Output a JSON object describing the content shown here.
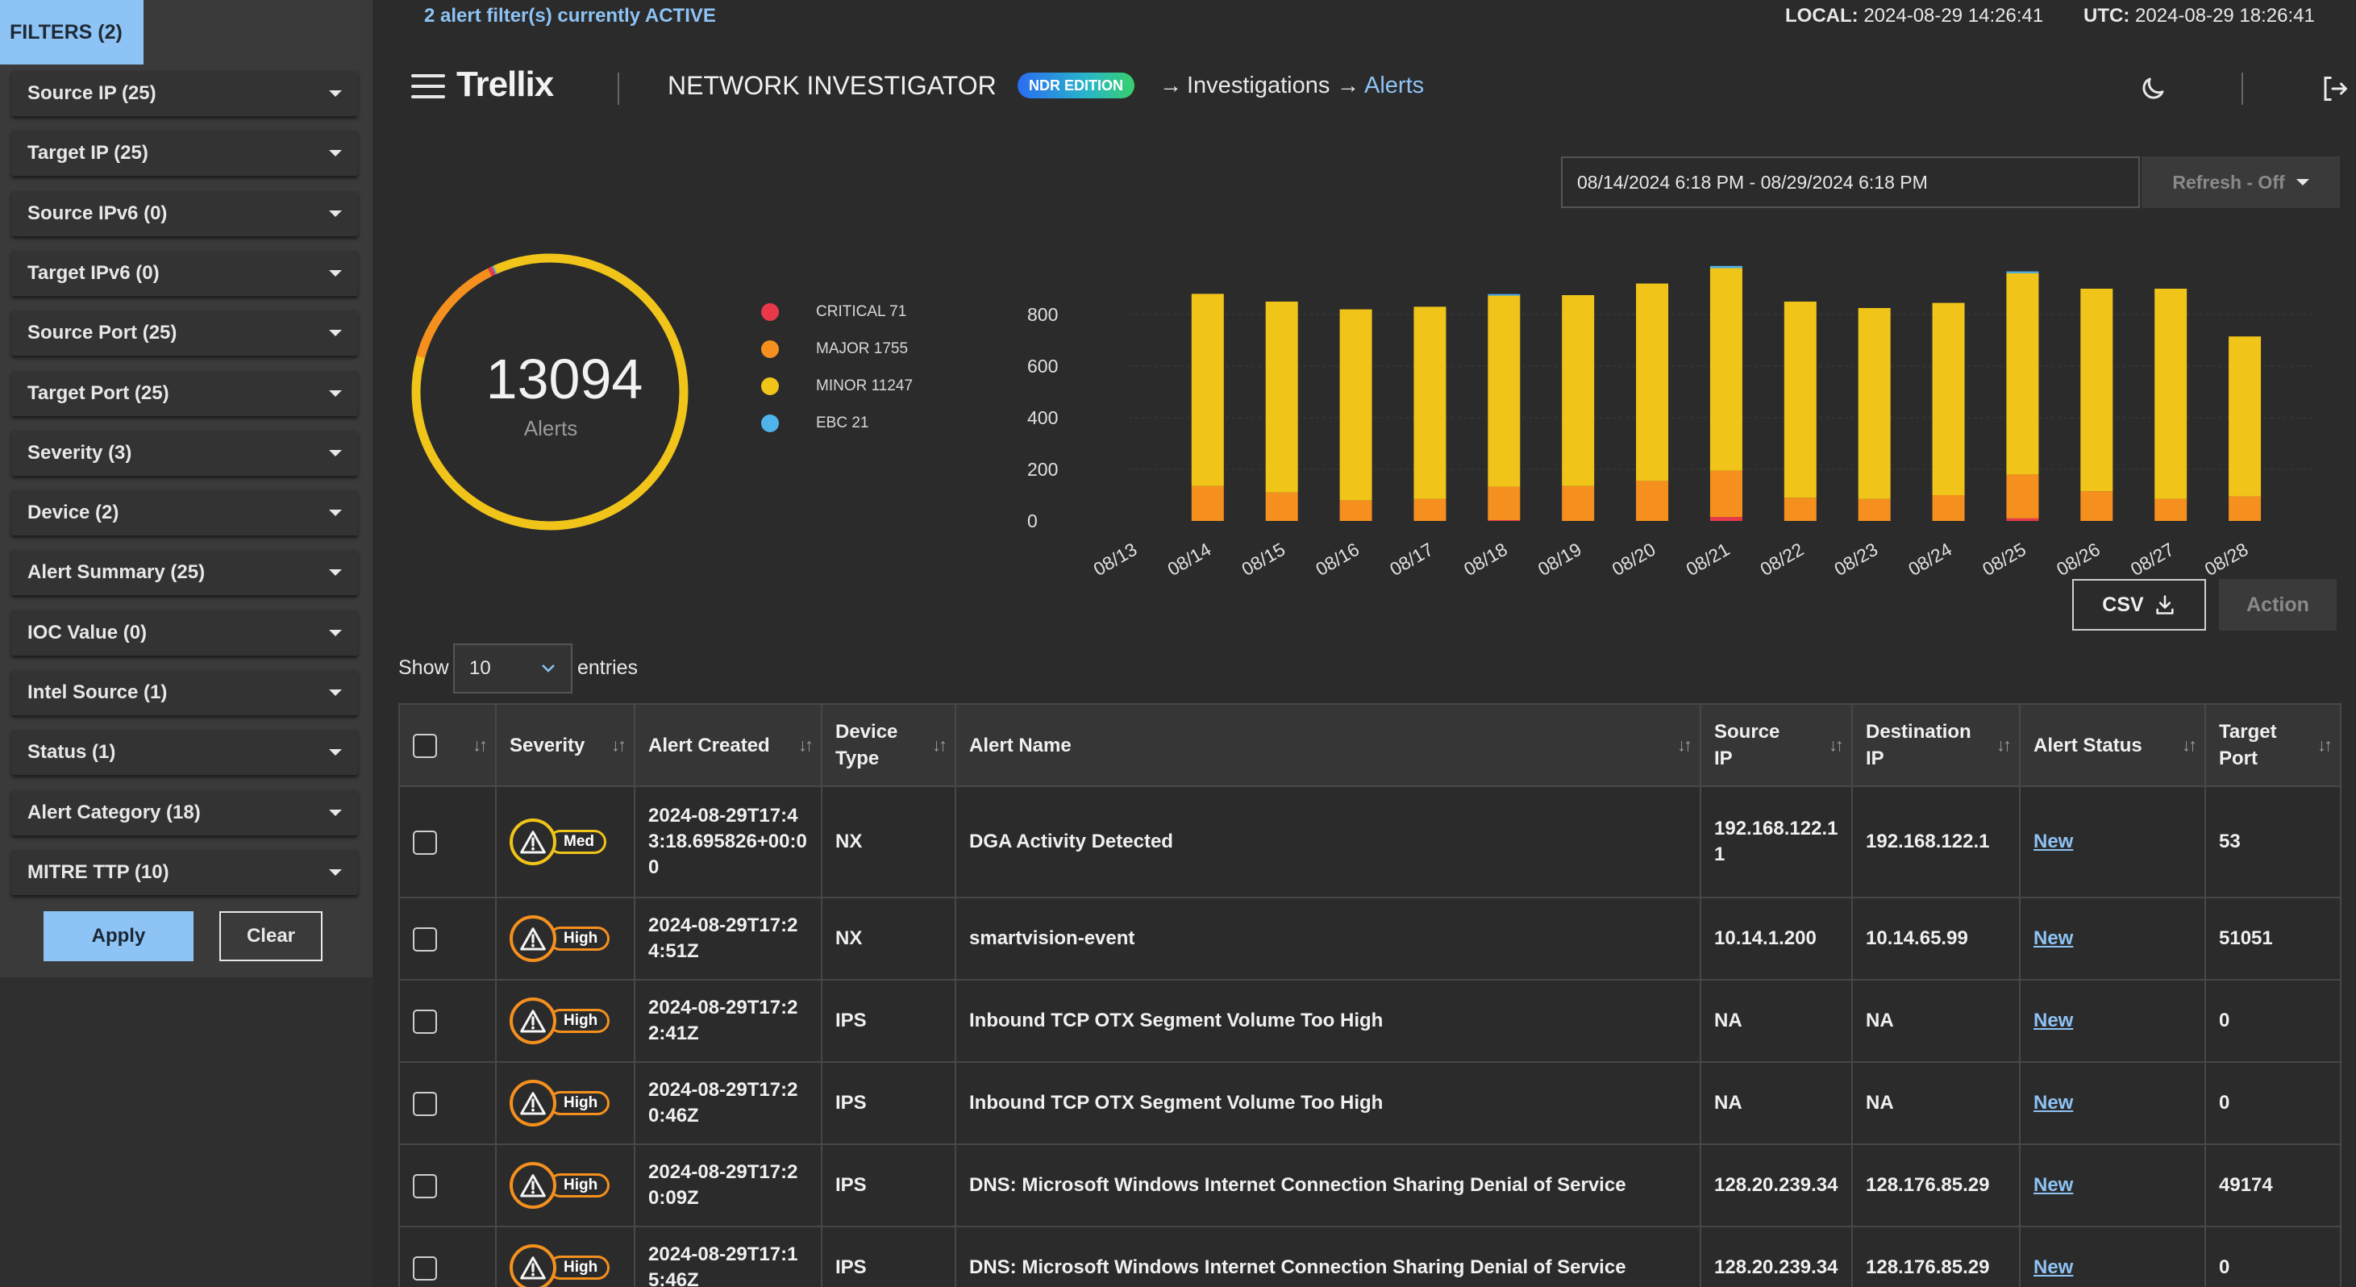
{
  "filters_panel": {
    "tab_label": "FILTERS (2)",
    "items": [
      {
        "label": "Source IP (25)"
      },
      {
        "label": "Target IP (25)"
      },
      {
        "label": "Source IPv6 (0)"
      },
      {
        "label": "Target IPv6 (0)"
      },
      {
        "label": "Source Port (25)"
      },
      {
        "label": "Target Port (25)"
      },
      {
        "label": "Severity (3)"
      },
      {
        "label": "Device (2)"
      },
      {
        "label": "Alert Summary (25)"
      },
      {
        "label": "IOC Value (0)"
      },
      {
        "label": "Intel Source (1)"
      },
      {
        "label": "Status (1)"
      },
      {
        "label": "Alert Category (18)"
      },
      {
        "label": "MITRE TTP (10)"
      }
    ],
    "apply_label": "Apply",
    "clear_label": "Clear"
  },
  "topbar": {
    "active_filters": "2 alert filter(s) currently ACTIVE",
    "local_key": "LOCAL:",
    "local_value": "2024-08-29 14:26:41",
    "utc_key": "UTC:",
    "utc_value": "2024-08-29 18:26:41"
  },
  "header": {
    "logo": "Trellix",
    "product": "NETWORK INVESTIGATOR",
    "badge": "NDR EDITION",
    "breadcrumb": [
      "Investigations",
      "Alerts"
    ],
    "arrow": "→"
  },
  "controls": {
    "date_range": "08/14/2024 6:18 PM - 08/29/2024 6:18 PM",
    "refresh_label": "Refresh - Off",
    "csv_label": "CSV",
    "action_label": "Action",
    "show_label": "Show",
    "entries_value": "10",
    "entries_label": "entries"
  },
  "summary": {
    "total": "13094",
    "total_label": "Alerts",
    "legend": [
      {
        "label": "CRITICAL 71",
        "color": "#e8394a",
        "count": 71
      },
      {
        "label": "MAJOR 1755",
        "color": "#f5901e",
        "count": 1755
      },
      {
        "label": "MINOR 11247",
        "color": "#f0c419",
        "count": 11247
      },
      {
        "label": "EBC 21",
        "color": "#4fb4ec",
        "count": 21
      }
    ]
  },
  "chart_data": {
    "type": "bar",
    "stacked": true,
    "categories": [
      "08/13",
      "08/14",
      "08/15",
      "08/16",
      "08/17",
      "08/18",
      "08/19",
      "08/20",
      "08/21",
      "08/22",
      "08/23",
      "08/24",
      "08/25",
      "08/26",
      "08/27",
      "08/28"
    ],
    "series": [
      {
        "name": "CRITICAL",
        "color": "#e8394a",
        "values": [
          0,
          0,
          0,
          0,
          0,
          3,
          0,
          0,
          15,
          0,
          0,
          0,
          10,
          0,
          0,
          0
        ]
      },
      {
        "name": "MAJOR",
        "color": "#f5901e",
        "values": [
          0,
          135,
          110,
          80,
          85,
          130,
          135,
          155,
          180,
          90,
          85,
          100,
          170,
          115,
          85,
          95
        ]
      },
      {
        "name": "MINOR",
        "color": "#f0c419",
        "values": [
          0,
          745,
          740,
          740,
          745,
          740,
          740,
          765,
          785,
          760,
          740,
          745,
          780,
          785,
          815,
          620
        ]
      },
      {
        "name": "EBC",
        "color": "#4fb4ec",
        "values": [
          0,
          0,
          0,
          0,
          0,
          6,
          0,
          0,
          8,
          0,
          0,
          0,
          7,
          0,
          0,
          0
        ]
      }
    ],
    "y_ticks": [
      0,
      200,
      400,
      600,
      800
    ],
    "ylim": [
      0,
      1000
    ],
    "grid": true
  },
  "table": {
    "columns": [
      "",
      "Severity",
      "Alert Created",
      "Device Type",
      "Alert Name",
      "Source IP",
      "Destination IP",
      "Alert Status",
      "Target Port"
    ],
    "rows": [
      {
        "severity": "Med",
        "created": "2024-08-29T17:43:18.695826+00:00",
        "device": "NX",
        "name": "DGA Activity Detected",
        "src": "192.168.122.11",
        "dst": "192.168.122.1",
        "status": "New",
        "port": "53"
      },
      {
        "severity": "High",
        "created": "2024-08-29T17:24:51Z",
        "device": "NX",
        "name": "smartvision-event",
        "src": "10.14.1.200",
        "dst": "10.14.65.99",
        "status": "New",
        "port": "51051"
      },
      {
        "severity": "High",
        "created": "2024-08-29T17:22:41Z",
        "device": "IPS",
        "name": "Inbound TCP OTX Segment Volume Too High",
        "src": "NA",
        "dst": "NA",
        "status": "New",
        "port": "0"
      },
      {
        "severity": "High",
        "created": "2024-08-29T17:20:46Z",
        "device": "IPS",
        "name": "Inbound TCP OTX Segment Volume Too High",
        "src": "NA",
        "dst": "NA",
        "status": "New",
        "port": "0"
      },
      {
        "severity": "High",
        "created": "2024-08-29T17:20:09Z",
        "device": "IPS",
        "name": "DNS: Microsoft Windows Internet Connection Sharing Denial of Service",
        "src": "128.20.239.34",
        "dst": "128.176.85.29",
        "status": "New",
        "port": "49174"
      },
      {
        "severity": "High",
        "created": "2024-08-29T17:15:46Z",
        "device": "IPS",
        "name": "DNS: Microsoft Windows Internet Connection Sharing Denial of Service",
        "src": "128.20.239.34",
        "dst": "128.176.85.29",
        "status": "New",
        "port": "0"
      }
    ]
  },
  "colors": {
    "accent": "#8ec3f5",
    "med": "#f0c419",
    "high": "#f5901e"
  }
}
